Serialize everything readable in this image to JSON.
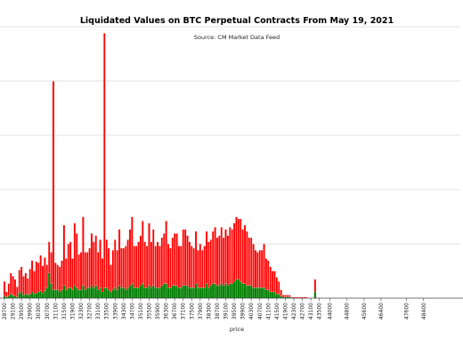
{
  "chart_data": {
    "type": "bar",
    "stacked": true,
    "title": "Liquidated Values on BTC Perpetual Contracts From May 19, 2021",
    "subtitle": "Source: CM Market Data Feed",
    "xlabel": "price",
    "ylabel": "",
    "grid": "horizontal",
    "colors": {
      "long": "#ff0000",
      "short": "#008000",
      "bar_edge": "#ffffff",
      "grid": "#d9d9d9"
    },
    "x": [
      28700,
      28800,
      28900,
      29000,
      29100,
      29200,
      29300,
      29400,
      29500,
      29600,
      29700,
      29800,
      29900,
      30000,
      30100,
      30200,
      30300,
      30400,
      30500,
      30600,
      30700,
      30800,
      30900,
      31000,
      31100,
      31200,
      31300,
      31400,
      31500,
      31600,
      31700,
      31800,
      31900,
      32000,
      32100,
      32200,
      32300,
      32400,
      32500,
      32600,
      32700,
      32800,
      32900,
      33000,
      33100,
      33200,
      33300,
      33400,
      33500,
      33600,
      33700,
      33800,
      33900,
      34000,
      34100,
      34200,
      34300,
      34400,
      34500,
      34600,
      34700,
      34800,
      34900,
      35000,
      35100,
      35200,
      35300,
      35400,
      35500,
      35600,
      35700,
      35800,
      35900,
      36000,
      36100,
      36200,
      36300,
      36400,
      36500,
      36600,
      36700,
      36800,
      36900,
      37000,
      37100,
      37200,
      37300,
      37400,
      37500,
      37600,
      37700,
      37800,
      37900,
      38000,
      38100,
      38200,
      38300,
      38400,
      38500,
      38600,
      38700,
      38800,
      38900,
      39000,
      39100,
      39200,
      39300,
      39400,
      39500,
      39600,
      39700,
      39800,
      39900,
      40000,
      40100,
      40200,
      40300,
      40400,
      40500,
      40600,
      40700,
      40800,
      40900,
      41000,
      41100,
      41200,
      41300,
      41400,
      41500,
      41600,
      41700,
      41800,
      41900,
      42000,
      42100,
      42200,
      42300,
      42400,
      42500,
      42600,
      42700,
      42800,
      42900,
      43000,
      43100,
      43200,
      43300,
      43400,
      43500,
      43600,
      43700,
      43800,
      43900,
      44000,
      44100,
      44200,
      44300,
      44400,
      44500,
      44600,
      44700,
      44800,
      44900,
      45000,
      45100,
      45200,
      45300,
      45400,
      45500,
      45600,
      45700,
      45800,
      45900,
      46000,
      46100,
      46200,
      46300,
      46400,
      46500,
      46600,
      46700,
      46800,
      46900,
      47000,
      47100,
      47200,
      47300,
      47400,
      47500,
      47600,
      47700,
      47800,
      47900,
      48000,
      48100,
      48200,
      48300,
      48400,
      48500,
      48600,
      48700,
      48800,
      48900,
      49000,
      49100,
      49200,
      49300,
      49400,
      49500,
      49600,
      49700,
      49800,
      49900,
      50000
    ],
    "tick_labels": [
      "28700",
      "29100",
      "29500",
      "29900",
      "30300",
      "30700",
      "31100",
      "31500",
      "31900",
      "32300",
      "32700",
      "33100",
      "33500",
      "33900",
      "34300",
      "34700",
      "35100",
      "35500",
      "35900",
      "36300",
      "36700",
      "37100",
      "37500",
      "37900",
      "38300",
      "38700",
      "39100",
      "39500",
      "39900",
      "40300",
      "40700",
      "41100",
      "41500",
      "41900",
      "42300",
      "42700",
      "43100",
      "43500",
      "44000",
      "44800",
      "45600",
      "46400",
      "47600",
      "48400"
    ],
    "long": [
      14,
      5,
      12,
      20,
      18,
      16,
      10,
      22,
      24,
      18,
      20,
      16,
      24,
      30,
      22,
      30,
      28,
      34,
      26,
      32,
      22,
      30,
      30,
      200,
      26,
      24,
      24,
      28,
      58,
      30,
      42,
      44,
      30,
      60,
      52,
      34,
      36,
      66,
      36,
      34,
      38,
      50,
      44,
      48,
      36,
      46,
      32,
      244,
      46,
      40,
      26,
      38,
      46,
      38,
      54,
      38,
      38,
      42,
      46,
      54,
      64,
      40,
      40,
      44,
      48,
      60,
      44,
      40,
      60,
      44,
      54,
      40,
      44,
      40,
      46,
      48,
      60,
      42,
      38,
      46,
      50,
      50,
      40,
      40,
      54,
      54,
      48,
      44,
      40,
      38,
      50,
      36,
      42,
      36,
      40,
      50,
      44,
      44,
      50,
      54,
      46,
      48,
      54,
      46,
      52,
      48,
      54,
      52,
      56,
      60,
      58,
      60,
      52,
      56,
      52,
      46,
      46,
      42,
      36,
      34,
      36,
      36,
      42,
      30,
      28,
      24,
      20,
      20,
      16,
      12,
      6,
      2,
      2,
      2,
      2,
      1,
      1,
      1,
      1,
      1,
      1,
      1,
      1,
      0,
      0,
      0,
      12,
      0,
      0,
      0,
      0,
      0,
      0,
      0,
      0,
      0,
      0,
      0,
      0,
      0,
      0,
      0,
      0,
      0,
      0,
      0,
      0,
      0,
      0,
      0,
      0,
      0,
      0,
      0,
      0,
      0,
      0,
      0,
      0,
      0,
      0,
      0,
      0,
      0,
      0,
      0,
      0,
      0,
      0,
      0,
      0,
      0,
      0,
      0,
      0,
      0,
      0,
      0,
      0,
      0,
      0,
      0,
      0,
      0,
      0,
      0,
      0,
      0,
      0,
      0,
      0,
      0,
      0,
      0,
      0,
      0,
      0,
      0,
      0,
      0,
      0,
      0,
      0,
      0,
      0,
      0,
      0,
      0,
      0,
      0,
      0
    ],
    "short": [
      2,
      1,
      2,
      4,
      3,
      2,
      1,
      5,
      6,
      3,
      4,
      3,
      4,
      6,
      4,
      5,
      6,
      7,
      5,
      7,
      10,
      24,
      14,
      8,
      8,
      8,
      6,
      8,
      12,
      8,
      10,
      10,
      8,
      12,
      10,
      8,
      8,
      12,
      8,
      10,
      10,
      12,
      10,
      12,
      8,
      10,
      6,
      10,
      10,
      8,
      6,
      8,
      10,
      8,
      12,
      10,
      10,
      8,
      10,
      12,
      14,
      10,
      10,
      10,
      12,
      14,
      10,
      10,
      12,
      10,
      12,
      10,
      10,
      10,
      12,
      14,
      14,
      10,
      10,
      12,
      12,
      12,
      10,
      10,
      12,
      12,
      12,
      10,
      10,
      10,
      14,
      10,
      10,
      10,
      10,
      14,
      10,
      12,
      14,
      14,
      12,
      12,
      14,
      12,
      14,
      12,
      14,
      14,
      16,
      18,
      18,
      16,
      14,
      14,
      12,
      12,
      12,
      10,
      10,
      10,
      10,
      10,
      10,
      8,
      8,
      6,
      6,
      6,
      4,
      4,
      2,
      1,
      1,
      1,
      1,
      0,
      0,
      0,
      0,
      0,
      0,
      0,
      0,
      0,
      0,
      0,
      6,
      0,
      0,
      0,
      0,
      0,
      0,
      0,
      0,
      0,
      0,
      0,
      0,
      0,
      0,
      0,
      0,
      0,
      0,
      0,
      0,
      0,
      0,
      0,
      0,
      0,
      0,
      0,
      0,
      0,
      0,
      0,
      0,
      0,
      0,
      0,
      0,
      0,
      0,
      0,
      0,
      0,
      0,
      0,
      0,
      0,
      0,
      0,
      0,
      0,
      0,
      0,
      0,
      0,
      0,
      0,
      0,
      0,
      0,
      0,
      0,
      0,
      0,
      0,
      0,
      0,
      0,
      0,
      0,
      0,
      0,
      0,
      0,
      0,
      0,
      0,
      0,
      0,
      0,
      0,
      0,
      0,
      0,
      0,
      0,
      0,
      0
    ],
    "ylim": [
      0,
      250
    ]
  }
}
